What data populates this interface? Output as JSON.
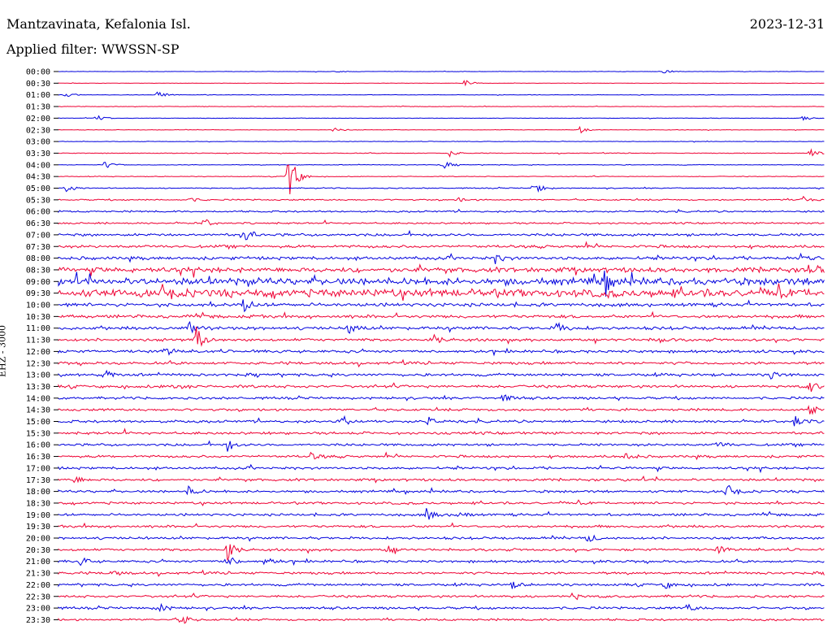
{
  "header": {
    "station": "Mantzavinata, Kefalonia Isl.",
    "date": "2023-12-31",
    "filter": "Applied filter: WWSSN-SP"
  },
  "chart_data": {
    "type": "line",
    "title": "Mantzavinata, Kefalonia Isl.",
    "ylabel": "EHZ - 3000",
    "row_labels": [
      "00:00",
      "00:30",
      "01:00",
      "01:30",
      "02:00",
      "02:30",
      "03:00",
      "03:30",
      "04:00",
      "04:30",
      "05:00",
      "05:30",
      "06:00",
      "06:30",
      "07:00",
      "07:30",
      "08:00",
      "08:30",
      "09:00",
      "09:30",
      "10:00",
      "10:30",
      "11:00",
      "11:30",
      "12:00",
      "12:30",
      "13:00",
      "13:30",
      "14:00",
      "14:30",
      "15:00",
      "15:30",
      "16:00",
      "16:30",
      "17:00",
      "17:30",
      "18:00",
      "18:30",
      "19:00",
      "19:30",
      "20:00",
      "20:30",
      "21:00",
      "21:30",
      "22:00",
      "22:30",
      "23:00",
      "23:30"
    ],
    "series_colors": [
      "#0000dd",
      "#ee0033"
    ],
    "noise_levels": [
      0.2,
      0.2,
      0.3,
      0.3,
      0.3,
      0.3,
      0.3,
      0.4,
      0.4,
      0.4,
      0.6,
      0.8,
      1.0,
      1.0,
      1.5,
      1.6,
      1.8,
      2.8,
      4.0,
      4.5,
      2.0,
      1.8,
      1.8,
      1.6,
      1.6,
      1.6,
      1.6,
      1.6,
      1.4,
      1.4,
      1.5,
      1.5,
      1.4,
      1.4,
      1.4,
      1.4,
      1.4,
      1.4,
      1.4,
      1.4,
      1.4,
      1.4,
      1.4,
      1.4,
      1.4,
      1.4,
      1.4,
      1.2
    ],
    "events": [
      {
        "row": 0,
        "x": 0.36,
        "amp": 2
      },
      {
        "row": 0,
        "x": 0.79,
        "amp": 3
      },
      {
        "row": 1,
        "x": 0.53,
        "amp": 4
      },
      {
        "row": 2,
        "x": 0.01,
        "amp": 3
      },
      {
        "row": 2,
        "x": 0.13,
        "amp": 5
      },
      {
        "row": 4,
        "x": 0.05,
        "amp": 5
      },
      {
        "row": 4,
        "x": 0.97,
        "amp": 4
      },
      {
        "row": 5,
        "x": 0.36,
        "amp": 4
      },
      {
        "row": 5,
        "x": 0.68,
        "amp": 4
      },
      {
        "row": 7,
        "x": 0.51,
        "amp": 4
      },
      {
        "row": 7,
        "x": 0.98,
        "amp": 6
      },
      {
        "row": 8,
        "x": 0.06,
        "amp": 5
      },
      {
        "row": 8,
        "x": 0.5,
        "amp": 6
      },
      {
        "row": 9,
        "x": 0.3,
        "amp": 34
      },
      {
        "row": 10,
        "x": 0.01,
        "amp": 5
      },
      {
        "row": 10,
        "x": 0.62,
        "amp": 9
      },
      {
        "row": 11,
        "x": 0.17,
        "amp": 3
      },
      {
        "row": 11,
        "x": 0.52,
        "amp": 3
      },
      {
        "row": 11,
        "x": 0.97,
        "amp": 6
      },
      {
        "row": 13,
        "x": 0.19,
        "amp": 6
      },
      {
        "row": 14,
        "x": 0.24,
        "amp": 12
      },
      {
        "row": 16,
        "x": 0.57,
        "amp": 6
      },
      {
        "row": 16,
        "x": 0.97,
        "amp": 5
      },
      {
        "row": 17,
        "x": 0.98,
        "amp": 12
      },
      {
        "row": 18,
        "x": 0.71,
        "amp": 16
      },
      {
        "row": 20,
        "x": 0.24,
        "amp": 10
      },
      {
        "row": 22,
        "x": 0.17,
        "amp": 8
      },
      {
        "row": 22,
        "x": 0.38,
        "amp": 8
      },
      {
        "row": 22,
        "x": 0.65,
        "amp": 8
      },
      {
        "row": 23,
        "x": 0.18,
        "amp": 16
      },
      {
        "row": 23,
        "x": 0.49,
        "amp": 6
      },
      {
        "row": 23,
        "x": 0.78,
        "amp": 6
      },
      {
        "row": 24,
        "x": 0.14,
        "amp": 6
      },
      {
        "row": 26,
        "x": 0.06,
        "amp": 6
      },
      {
        "row": 26,
        "x": 0.93,
        "amp": 5
      },
      {
        "row": 27,
        "x": 0.15,
        "amp": 5
      },
      {
        "row": 27,
        "x": 0.98,
        "amp": 7
      },
      {
        "row": 28,
        "x": 0.58,
        "amp": 5
      },
      {
        "row": 29,
        "x": 0.98,
        "amp": 6
      },
      {
        "row": 30,
        "x": 0.37,
        "amp": 6
      },
      {
        "row": 30,
        "x": 0.48,
        "amp": 6
      },
      {
        "row": 30,
        "x": 0.96,
        "amp": 7
      },
      {
        "row": 32,
        "x": 0.22,
        "amp": 8
      },
      {
        "row": 32,
        "x": 0.86,
        "amp": 5
      },
      {
        "row": 33,
        "x": 0.33,
        "amp": 5
      },
      {
        "row": 33,
        "x": 0.74,
        "amp": 5
      },
      {
        "row": 35,
        "x": 0.02,
        "amp": 5
      },
      {
        "row": 36,
        "x": 0.17,
        "amp": 6
      },
      {
        "row": 36,
        "x": 0.87,
        "amp": 7
      },
      {
        "row": 38,
        "x": 0.48,
        "amp": 9
      },
      {
        "row": 38,
        "x": 0.52,
        "amp": 6
      },
      {
        "row": 40,
        "x": 0.69,
        "amp": 5
      },
      {
        "row": 41,
        "x": 0.22,
        "amp": 14
      },
      {
        "row": 41,
        "x": 0.43,
        "amp": 5
      },
      {
        "row": 41,
        "x": 0.86,
        "amp": 5
      },
      {
        "row": 42,
        "x": 0.03,
        "amp": 5
      },
      {
        "row": 42,
        "x": 0.22,
        "amp": 8
      },
      {
        "row": 42,
        "x": 0.27,
        "amp": 6
      },
      {
        "row": 43,
        "x": 0.07,
        "amp": 4
      },
      {
        "row": 44,
        "x": 0.59,
        "amp": 5
      },
      {
        "row": 44,
        "x": 0.79,
        "amp": 5
      },
      {
        "row": 45,
        "x": 0.67,
        "amp": 5
      },
      {
        "row": 46,
        "x": 0.13,
        "amp": 6
      },
      {
        "row": 46,
        "x": 0.82,
        "amp": 5
      },
      {
        "row": 47,
        "x": 0.16,
        "amp": 7
      }
    ]
  }
}
